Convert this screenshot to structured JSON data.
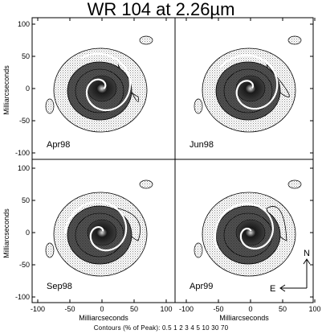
{
  "title": "WR 104 at 2.26µm",
  "axes": {
    "xlabel": "Milliarcseconds",
    "ylabel": "Milliarcseconds",
    "x_ticks": [
      "-100",
      "-50",
      "0",
      "50",
      "100"
    ],
    "y_ticks": [
      "100",
      "50",
      "0",
      "-50",
      "-100"
    ]
  },
  "panels": [
    {
      "label": "Apr98"
    },
    {
      "label": "Jun98"
    },
    {
      "label": "Sep98"
    },
    {
      "label": "Apr99"
    }
  ],
  "compass": {
    "north": "N",
    "east": "E"
  },
  "caption": "Contours (% of Peak): 0.5 1 2 3 4 5 10 30 70"
}
